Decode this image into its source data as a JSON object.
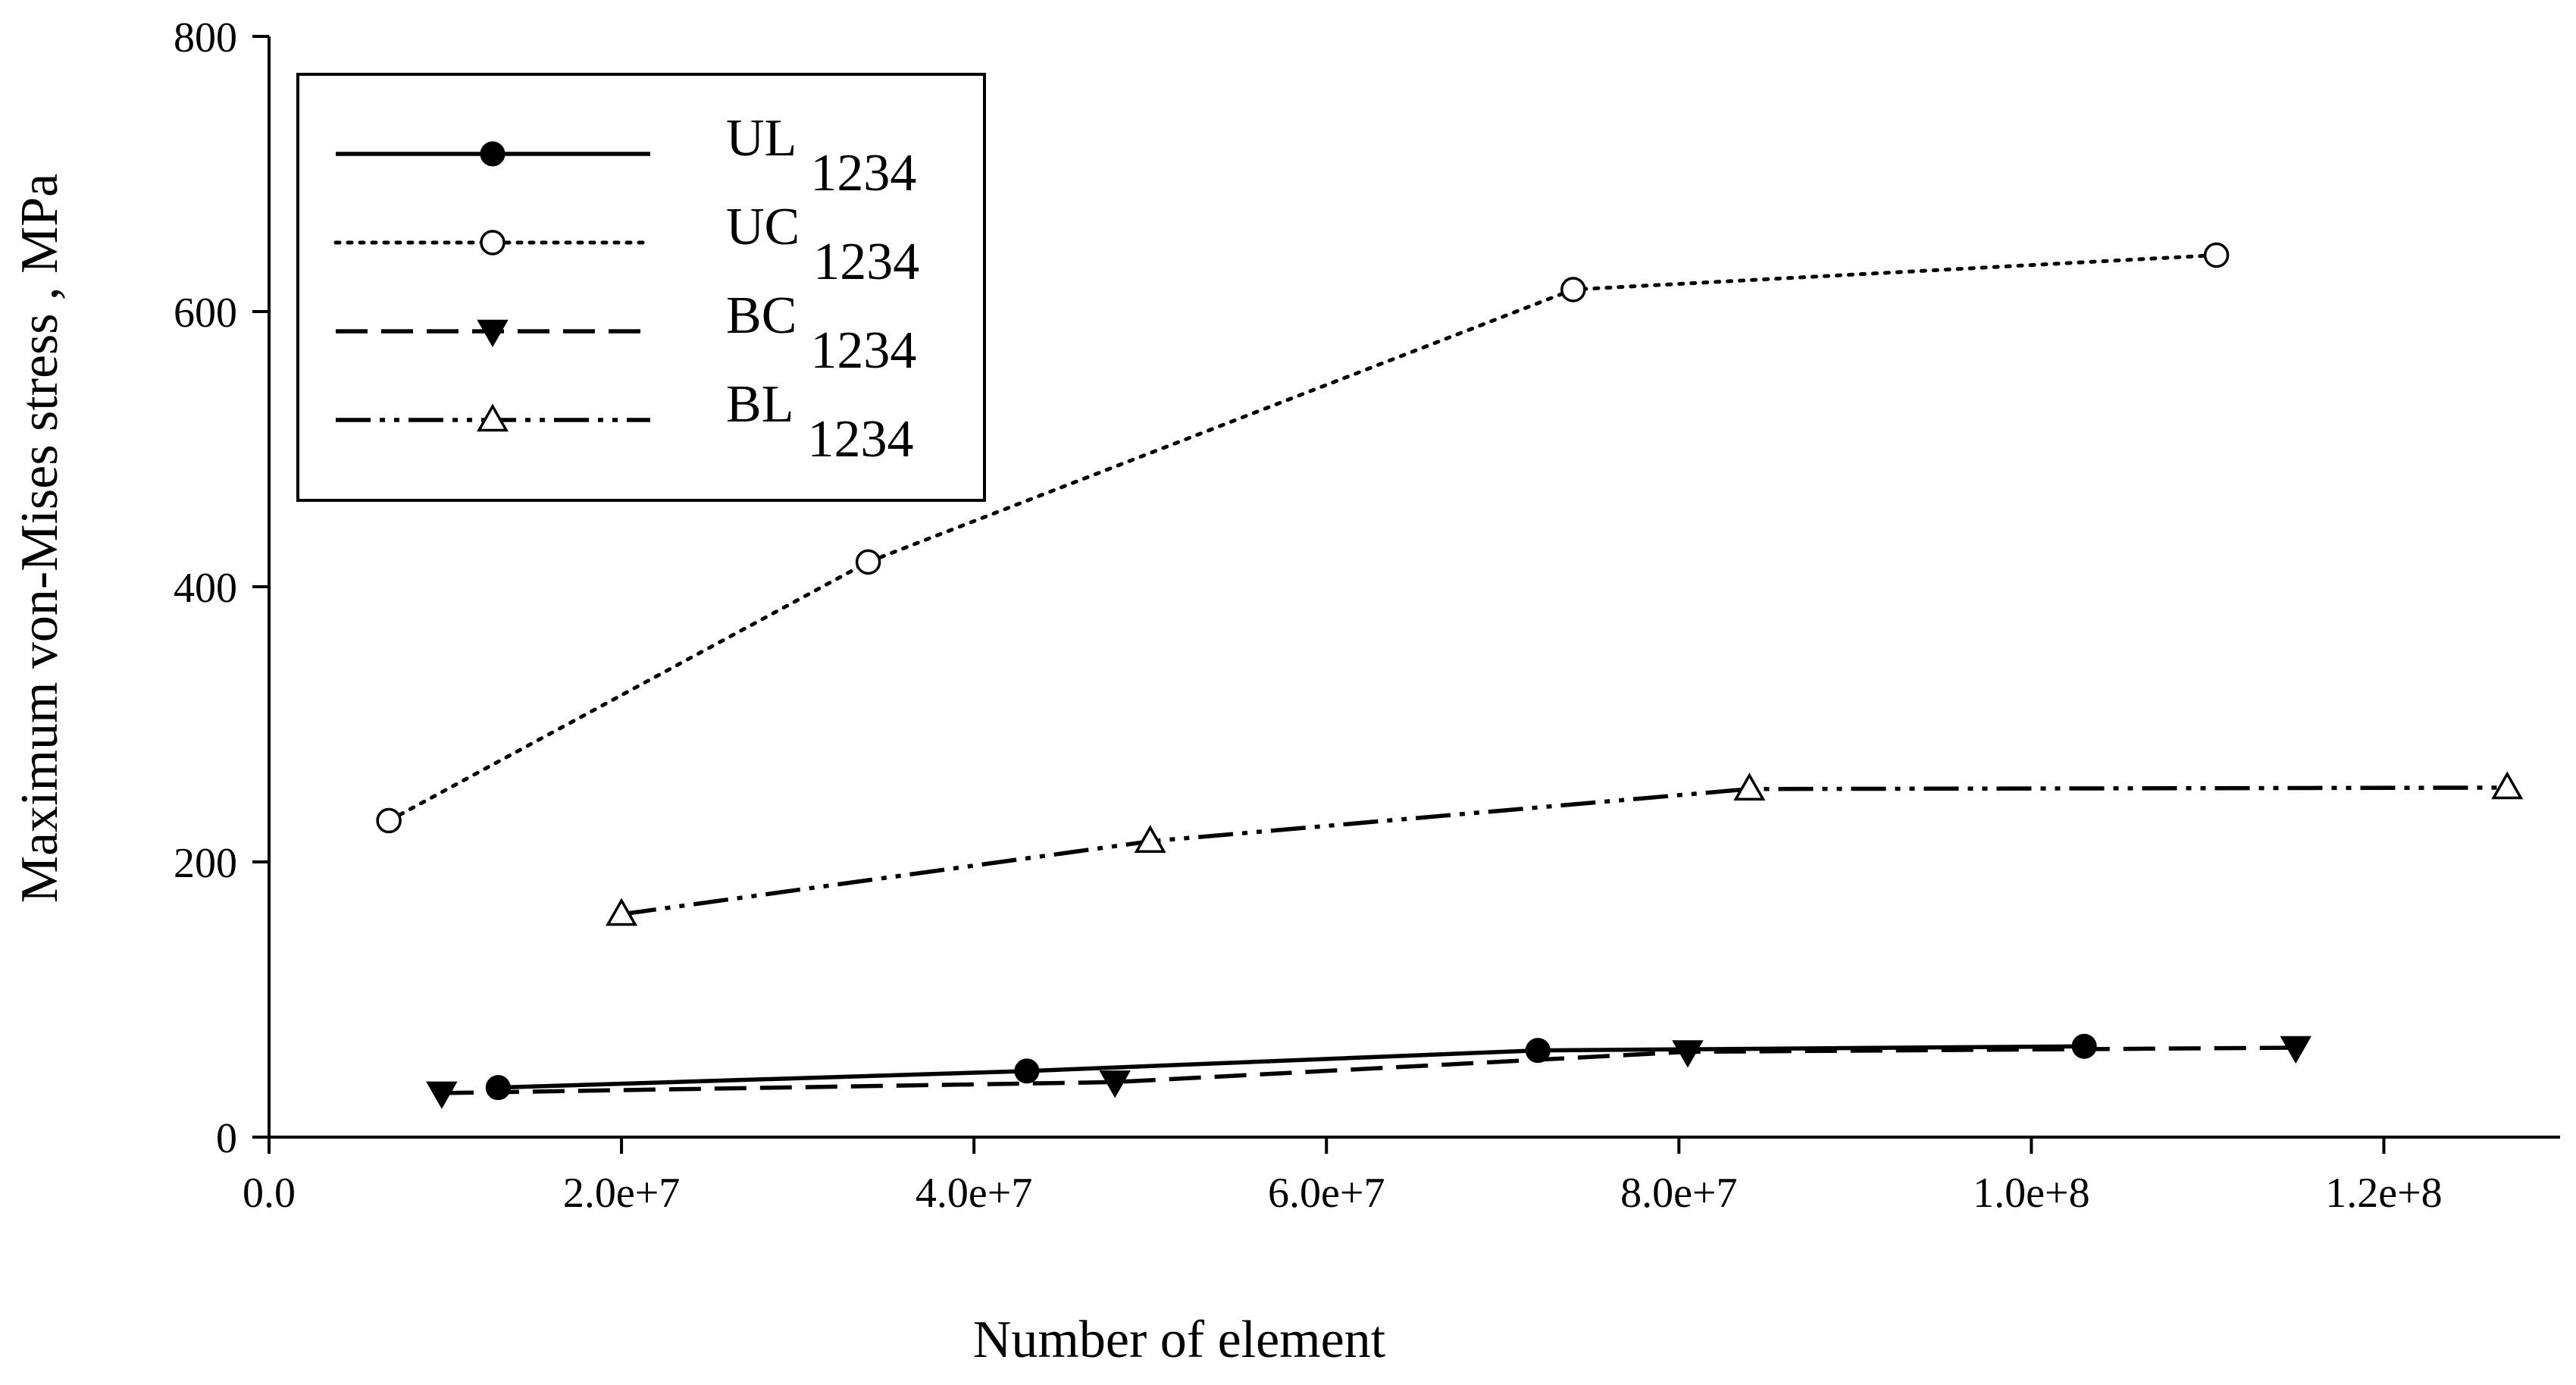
{
  "chart_data": {
    "type": "line",
    "xlabel": "Number of element",
    "ylabel": "Maximum von-Mises stress , MPa",
    "xlim": [
      0,
      130000000
    ],
    "ylim": [
      0,
      800
    ],
    "x_ticks": [
      0,
      20000000,
      40000000,
      60000000,
      80000000,
      100000000,
      120000000
    ],
    "x_tick_labels": [
      "0.0",
      "2.0e+7",
      "4.0e+7",
      "6.0e+7",
      "8.0e+7",
      "1.0e+8",
      "1.2e+8"
    ],
    "y_ticks": [
      0,
      200,
      400,
      600,
      800
    ],
    "y_tick_labels": [
      "0",
      "200",
      "400",
      "600",
      "800"
    ],
    "grid": false,
    "legend_position": "top-left",
    "series": [
      {
        "name": "UL",
        "subscript": "1234",
        "line_style": "solid",
        "marker": "filled-circle",
        "x": [
          13000000,
          43000000,
          72000000,
          103000000
        ],
        "y": [
          36,
          48,
          63,
          66
        ]
      },
      {
        "name": "UC",
        "subscript": "1234",
        "line_style": "dotted",
        "marker": "open-circle",
        "x": [
          6800000,
          34000000,
          74000000,
          110500000
        ],
        "y": [
          230,
          418,
          616,
          641
        ]
      },
      {
        "name": "BC",
        "subscript": "1234",
        "line_style": "dashed",
        "marker": "filled-triangle-down",
        "x": [
          9800000,
          48000000,
          80500000,
          115000000
        ],
        "y": [
          32,
          40,
          62,
          65
        ]
      },
      {
        "name": "BL",
        "subscript": "1234",
        "line_style": "dash-dot-dot",
        "marker": "open-triangle-up",
        "x": [
          20000000,
          50000000,
          84000000,
          127000000
        ],
        "y": [
          162,
          215,
          253,
          254
        ]
      }
    ]
  }
}
